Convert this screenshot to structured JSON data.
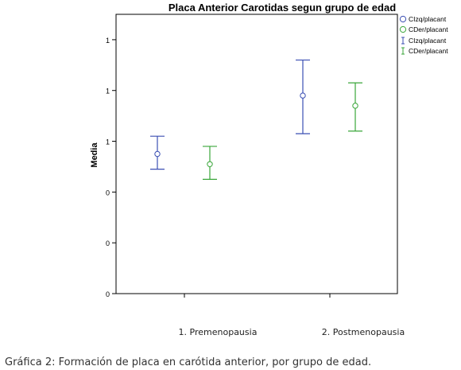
{
  "chart_data": {
    "type": "errorbar",
    "title": "Placa Anterior Carotidas segun grupo de edad",
    "ylabel": "Media",
    "xlabel": "",
    "categories": [
      "1. Premenopausia",
      "2. Postmenopausia"
    ],
    "yticks": [
      {
        "value": 0,
        "label": "0"
      },
      {
        "value": 0.2,
        "label": "0"
      },
      {
        "value": 0.4,
        "label": "0"
      },
      {
        "value": 0.6,
        "label": "1"
      },
      {
        "value": 0.8,
        "label": "1"
      },
      {
        "value": 1.0,
        "label": "1"
      }
    ],
    "ylim": [
      0,
      1.1
    ],
    "grid": false,
    "legend_position": "top-right",
    "series": [
      {
        "name": "CIzq/placant",
        "color": "#3b4fb3",
        "mean": [
          0.55,
          0.78
        ],
        "lower": [
          0.49,
          0.63
        ],
        "upper": [
          0.62,
          0.92
        ]
      },
      {
        "name": "CDer/placant",
        "color": "#3aa63a",
        "mean": [
          0.51,
          0.74
        ],
        "lower": [
          0.45,
          0.64
        ],
        "upper": [
          0.58,
          0.83
        ]
      }
    ],
    "legend": {
      "means": [
        "CIzq/placant",
        "CDer/placant"
      ],
      "errorbars": [
        "CIzq/placant",
        "CDer/placant"
      ]
    }
  },
  "caption": "Gráfica 2: Formación de placa en carótida anterior, por grupo de edad."
}
